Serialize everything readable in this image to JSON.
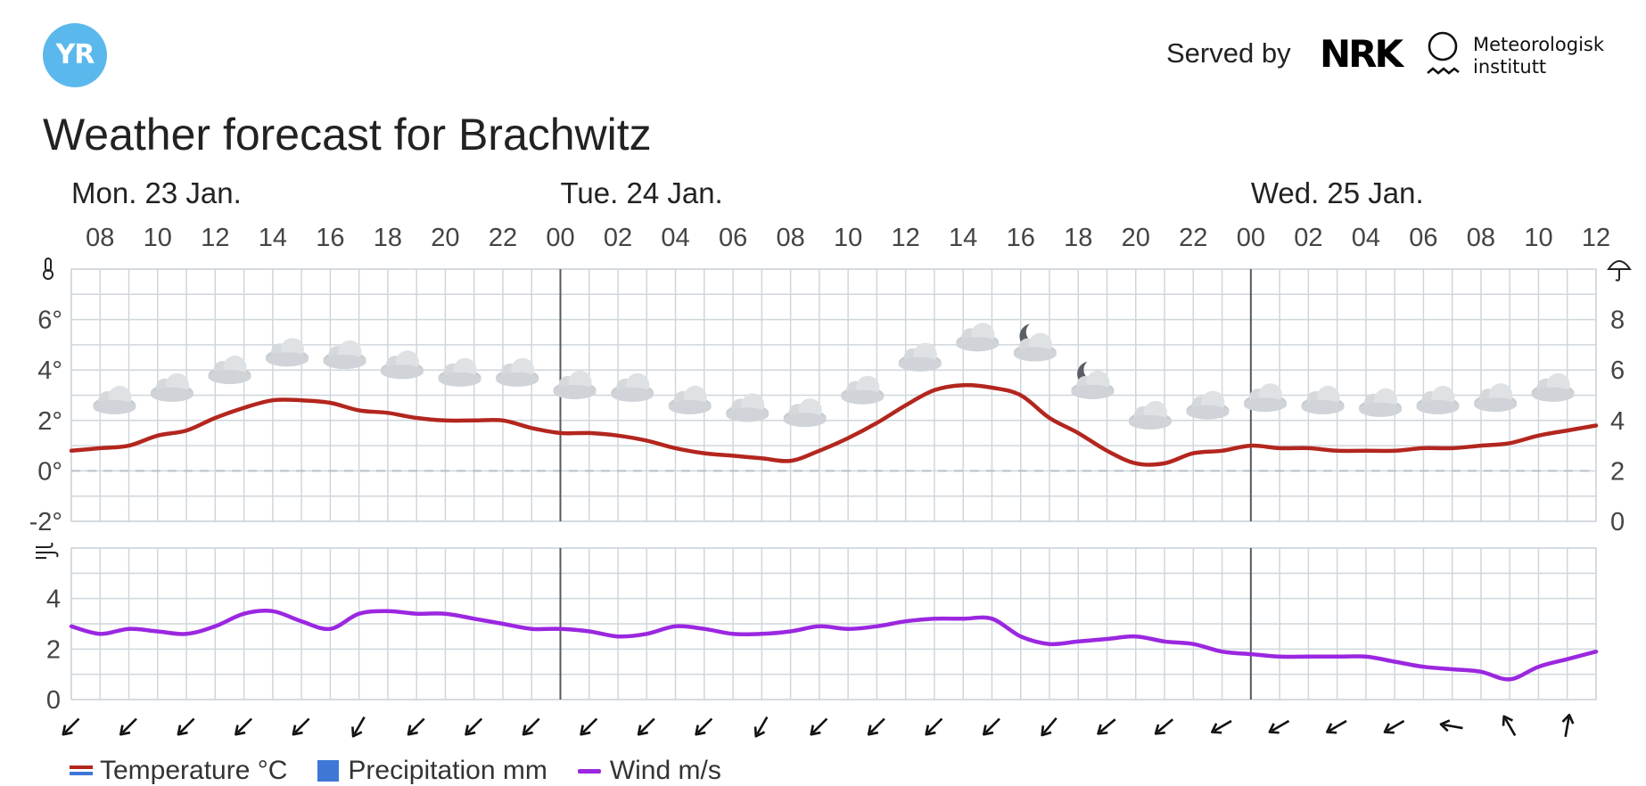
{
  "header": {
    "logo_text": "YR",
    "served_by": "Served by",
    "nrk_logo": "NRK",
    "met_line1": "Meteorologisk",
    "met_line2": "institutt"
  },
  "title": "Weather forecast for Brachwitz",
  "legend": {
    "temperature": "Temperature °C",
    "precipitation": "Precipitation mm",
    "wind": "Wind m/s"
  },
  "colors": {
    "temperature": "#b3261e",
    "wind": "#9b27e0",
    "precipitation": "#3e77d6",
    "grid": "#cfd6dc",
    "day_divider": "#555a60"
  },
  "chart_data": [
    {
      "type": "line",
      "day_labels": [
        {
          "label": "Mon. 23 Jan.",
          "start": "2023-01-23T07:00"
        },
        {
          "label": "Tue. 24 Jan.",
          "start": "2023-01-24T00:00"
        },
        {
          "label": "Wed. 25 Jan.",
          "start": "2023-01-25T00:00"
        }
      ],
      "x_range": [
        "2023-01-23T07:00",
        "2023-01-25T12:00"
      ],
      "x_tick_labels": [
        "08",
        "10",
        "12",
        "14",
        "16",
        "18",
        "20",
        "22",
        "00",
        "02",
        "04",
        "06",
        "08",
        "10",
        "12",
        "14",
        "16",
        "18",
        "20",
        "22",
        "00",
        "02",
        "04",
        "06",
        "08",
        "10",
        "12"
      ],
      "y_left_ticks": [
        "6°",
        "4°",
        "2°",
        "0°",
        "-2°"
      ],
      "y_left_range": [
        -2,
        8
      ],
      "y_right_ticks": [
        "8",
        "6",
        "4",
        "2",
        "0"
      ],
      "y_right_range": [
        0,
        10
      ],
      "grid": true,
      "series": [
        {
          "name": "Temperature °C",
          "x": [
            "2023-01-23T07:00",
            "2023-01-23T08:00",
            "2023-01-23T09:00",
            "2023-01-23T10:00",
            "2023-01-23T11:00",
            "2023-01-23T12:00",
            "2023-01-23T13:00",
            "2023-01-23T14:00",
            "2023-01-23T15:00",
            "2023-01-23T16:00",
            "2023-01-23T17:00",
            "2023-01-23T18:00",
            "2023-01-23T19:00",
            "2023-01-23T20:00",
            "2023-01-23T21:00",
            "2023-01-23T22:00",
            "2023-01-23T23:00",
            "2023-01-24T00:00",
            "2023-01-24T01:00",
            "2023-01-24T02:00",
            "2023-01-24T03:00",
            "2023-01-24T04:00",
            "2023-01-24T05:00",
            "2023-01-24T06:00",
            "2023-01-24T07:00",
            "2023-01-24T08:00",
            "2023-01-24T09:00",
            "2023-01-24T10:00",
            "2023-01-24T11:00",
            "2023-01-24T12:00",
            "2023-01-24T13:00",
            "2023-01-24T14:00",
            "2023-01-24T15:00",
            "2023-01-24T16:00",
            "2023-01-24T17:00",
            "2023-01-24T18:00",
            "2023-01-24T19:00",
            "2023-01-24T20:00",
            "2023-01-24T21:00",
            "2023-01-24T22:00",
            "2023-01-24T23:00",
            "2023-01-25T00:00",
            "2023-01-25T01:00",
            "2023-01-25T02:00",
            "2023-01-25T03:00",
            "2023-01-25T04:00",
            "2023-01-25T05:00",
            "2023-01-25T06:00",
            "2023-01-25T07:00",
            "2023-01-25T08:00",
            "2023-01-25T09:00",
            "2023-01-25T10:00",
            "2023-01-25T11:00",
            "2023-01-25T12:00"
          ],
          "values": [
            0.8,
            0.9,
            1.0,
            1.4,
            1.6,
            2.1,
            2.5,
            2.8,
            2.8,
            2.7,
            2.4,
            2.3,
            2.1,
            2.0,
            2.0,
            2.0,
            1.7,
            1.5,
            1.5,
            1.4,
            1.2,
            0.9,
            0.7,
            0.6,
            0.5,
            0.4,
            0.8,
            1.3,
            1.9,
            2.6,
            3.2,
            3.4,
            3.3,
            3.0,
            2.1,
            1.5,
            0.8,
            0.3,
            0.3,
            0.7,
            0.8,
            1.0,
            0.9,
            0.9,
            0.8,
            0.8,
            0.8,
            0.9,
            0.9,
            1.0,
            1.1,
            1.4,
            1.6,
            1.8
          ]
        }
      ],
      "weather_symbols": [
        {
          "x": "2023-01-23T08:00",
          "icon": "cloud-icon"
        },
        {
          "x": "2023-01-23T10:00",
          "icon": "cloud-icon"
        },
        {
          "x": "2023-01-23T12:00",
          "icon": "cloud-icon"
        },
        {
          "x": "2023-01-23T14:00",
          "icon": "cloud-icon"
        },
        {
          "x": "2023-01-23T16:00",
          "icon": "cloud-icon"
        },
        {
          "x": "2023-01-23T18:00",
          "icon": "cloud-icon"
        },
        {
          "x": "2023-01-23T20:00",
          "icon": "cloud-icon"
        },
        {
          "x": "2023-01-23T22:00",
          "icon": "cloud-icon"
        },
        {
          "x": "2023-01-24T00:00",
          "icon": "cloud-icon"
        },
        {
          "x": "2023-01-24T02:00",
          "icon": "cloud-icon"
        },
        {
          "x": "2023-01-24T04:00",
          "icon": "cloud-icon"
        },
        {
          "x": "2023-01-24T06:00",
          "icon": "cloud-icon"
        },
        {
          "x": "2023-01-24T08:00",
          "icon": "cloud-icon"
        },
        {
          "x": "2023-01-24T10:00",
          "icon": "cloud-icon"
        },
        {
          "x": "2023-01-24T12:00",
          "icon": "cloud-icon"
        },
        {
          "x": "2023-01-24T14:00",
          "icon": "cloud-icon"
        },
        {
          "x": "2023-01-24T16:00",
          "icon": "moon-cloud-icon"
        },
        {
          "x": "2023-01-24T18:00",
          "icon": "moon-cloud-icon"
        },
        {
          "x": "2023-01-24T20:00",
          "icon": "cloud-icon"
        },
        {
          "x": "2023-01-24T22:00",
          "icon": "cloud-icon"
        },
        {
          "x": "2023-01-25T00:00",
          "icon": "cloud-icon"
        },
        {
          "x": "2023-01-25T02:00",
          "icon": "cloud-icon"
        },
        {
          "x": "2023-01-25T04:00",
          "icon": "cloud-icon"
        },
        {
          "x": "2023-01-25T06:00",
          "icon": "cloud-icon"
        },
        {
          "x": "2023-01-25T08:00",
          "icon": "cloud-icon"
        },
        {
          "x": "2023-01-25T10:00",
          "icon": "cloud-icon"
        }
      ]
    },
    {
      "type": "line",
      "x_range": [
        "2023-01-23T07:00",
        "2023-01-25T12:00"
      ],
      "y_ticks": [
        "4",
        "2",
        "0"
      ],
      "y_range": [
        0,
        6
      ],
      "grid": true,
      "series": [
        {
          "name": "Wind m/s",
          "x": [
            "2023-01-23T07:00",
            "2023-01-23T08:00",
            "2023-01-23T09:00",
            "2023-01-23T10:00",
            "2023-01-23T11:00",
            "2023-01-23T12:00",
            "2023-01-23T13:00",
            "2023-01-23T14:00",
            "2023-01-23T15:00",
            "2023-01-23T16:00",
            "2023-01-23T17:00",
            "2023-01-23T18:00",
            "2023-01-23T19:00",
            "2023-01-23T20:00",
            "2023-01-23T21:00",
            "2023-01-23T22:00",
            "2023-01-23T23:00",
            "2023-01-24T00:00",
            "2023-01-24T01:00",
            "2023-01-24T02:00",
            "2023-01-24T03:00",
            "2023-01-24T04:00",
            "2023-01-24T05:00",
            "2023-01-24T06:00",
            "2023-01-24T07:00",
            "2023-01-24T08:00",
            "2023-01-24T09:00",
            "2023-01-24T10:00",
            "2023-01-24T11:00",
            "2023-01-24T12:00",
            "2023-01-24T13:00",
            "2023-01-24T14:00",
            "2023-01-24T15:00",
            "2023-01-24T16:00",
            "2023-01-24T17:00",
            "2023-01-24T18:00",
            "2023-01-24T19:00",
            "2023-01-24T20:00",
            "2023-01-24T21:00",
            "2023-01-24T22:00",
            "2023-01-24T23:00",
            "2023-01-25T00:00",
            "2023-01-25T01:00",
            "2023-01-25T02:00",
            "2023-01-25T03:00",
            "2023-01-25T04:00",
            "2023-01-25T05:00",
            "2023-01-25T06:00",
            "2023-01-25T07:00",
            "2023-01-25T08:00",
            "2023-01-25T09:00",
            "2023-01-25T10:00",
            "2023-01-25T11:00",
            "2023-01-25T12:00"
          ],
          "values": [
            2.9,
            2.6,
            2.8,
            2.7,
            2.6,
            2.9,
            3.4,
            3.5,
            3.1,
            2.8,
            3.4,
            3.5,
            3.4,
            3.4,
            3.2,
            3.0,
            2.8,
            2.8,
            2.7,
            2.5,
            2.6,
            2.9,
            2.8,
            2.6,
            2.6,
            2.7,
            2.9,
            2.8,
            2.9,
            3.1,
            3.2,
            3.2,
            3.2,
            2.5,
            2.2,
            2.3,
            2.4,
            2.5,
            2.3,
            2.2,
            1.9,
            1.8,
            1.7,
            1.7,
            1.7,
            1.7,
            1.5,
            1.3,
            1.2,
            1.1,
            0.8,
            1.3,
            1.6,
            1.9
          ]
        }
      ],
      "wind_direction_arrows": [
        {
          "x": "2023-01-23T07:00",
          "to_deg": 225
        },
        {
          "x": "2023-01-23T09:00",
          "to_deg": 225
        },
        {
          "x": "2023-01-23T11:00",
          "to_deg": 225
        },
        {
          "x": "2023-01-23T13:00",
          "to_deg": 225
        },
        {
          "x": "2023-01-23T15:00",
          "to_deg": 225
        },
        {
          "x": "2023-01-23T17:00",
          "to_deg": 210
        },
        {
          "x": "2023-01-23T19:00",
          "to_deg": 225
        },
        {
          "x": "2023-01-23T21:00",
          "to_deg": 225
        },
        {
          "x": "2023-01-23T23:00",
          "to_deg": 225
        },
        {
          "x": "2023-01-24T01:00",
          "to_deg": 225
        },
        {
          "x": "2023-01-24T03:00",
          "to_deg": 225
        },
        {
          "x": "2023-01-24T05:00",
          "to_deg": 225
        },
        {
          "x": "2023-01-24T07:00",
          "to_deg": 210
        },
        {
          "x": "2023-01-24T09:00",
          "to_deg": 225
        },
        {
          "x": "2023-01-24T11:00",
          "to_deg": 225
        },
        {
          "x": "2023-01-24T13:00",
          "to_deg": 225
        },
        {
          "x": "2023-01-24T15:00",
          "to_deg": 225
        },
        {
          "x": "2023-01-24T17:00",
          "to_deg": 220
        },
        {
          "x": "2023-01-24T19:00",
          "to_deg": 230
        },
        {
          "x": "2023-01-24T21:00",
          "to_deg": 230
        },
        {
          "x": "2023-01-24T23:00",
          "to_deg": 240
        },
        {
          "x": "2023-01-25T01:00",
          "to_deg": 240
        },
        {
          "x": "2023-01-25T03:00",
          "to_deg": 240
        },
        {
          "x": "2023-01-25T05:00",
          "to_deg": 240
        },
        {
          "x": "2023-01-25T07:00",
          "to_deg": 280
        },
        {
          "x": "2023-01-25T09:00",
          "to_deg": 330
        },
        {
          "x": "2023-01-25T11:00",
          "to_deg": 10
        }
      ]
    }
  ]
}
